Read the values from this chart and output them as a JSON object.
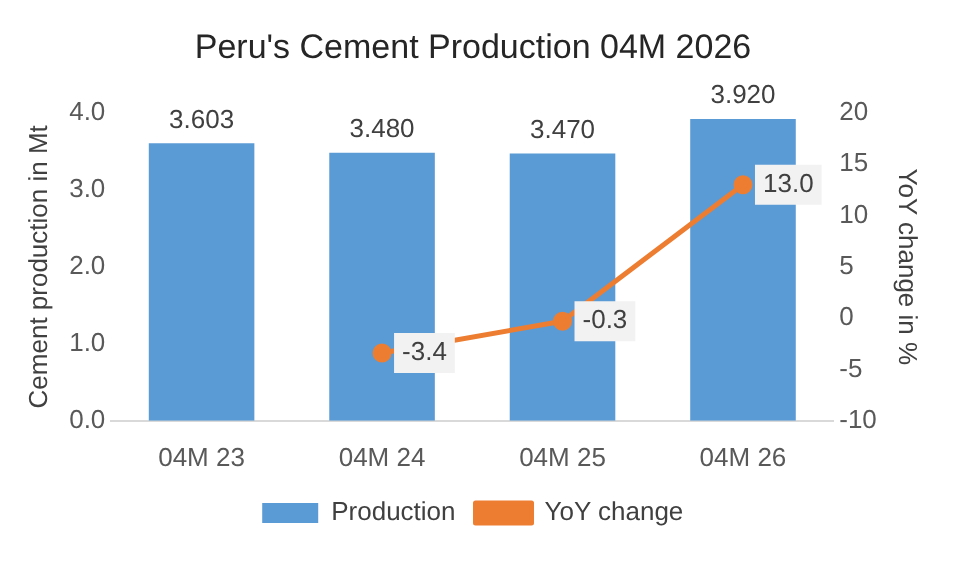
{
  "chart_data": {
    "type": "bar",
    "title": "Peru's Cement Production 04M 2026",
    "ylabel": "Cement production in Mt",
    "y2label": "YoY change in %",
    "categories": [
      "04M 23",
      "04M 24",
      "04M 25",
      "04M 26"
    ],
    "series": [
      {
        "name": "Production",
        "color": "#5b9bd5",
        "values": [
          3.603,
          3.48,
          3.47,
          3.92
        ],
        "value_labels": [
          "3.603",
          "3.480",
          "3.470",
          "3.920"
        ]
      },
      {
        "name": "YoY change",
        "type": "line",
        "axis": "y2",
        "color": "#ed7d31",
        "marker": "circle",
        "values": [
          null,
          -3.4,
          -0.3,
          13.0
        ],
        "value_labels": [
          null,
          "-3.4",
          "-0.3",
          "13.0"
        ]
      }
    ],
    "ylim": [
      0,
      4
    ],
    "yticks": [
      {
        "value": 0,
        "label": "0.0"
      },
      {
        "value": 1,
        "label": "1.0"
      },
      {
        "value": 2,
        "label": "2.0"
      },
      {
        "value": 3,
        "label": "3.0"
      },
      {
        "value": 4,
        "label": "4.0"
      }
    ],
    "y2lim": [
      -10,
      20
    ],
    "y2ticks": [
      -10,
      -5,
      0,
      5,
      10,
      15,
      20
    ],
    "grid": false,
    "legend": "bottom"
  }
}
